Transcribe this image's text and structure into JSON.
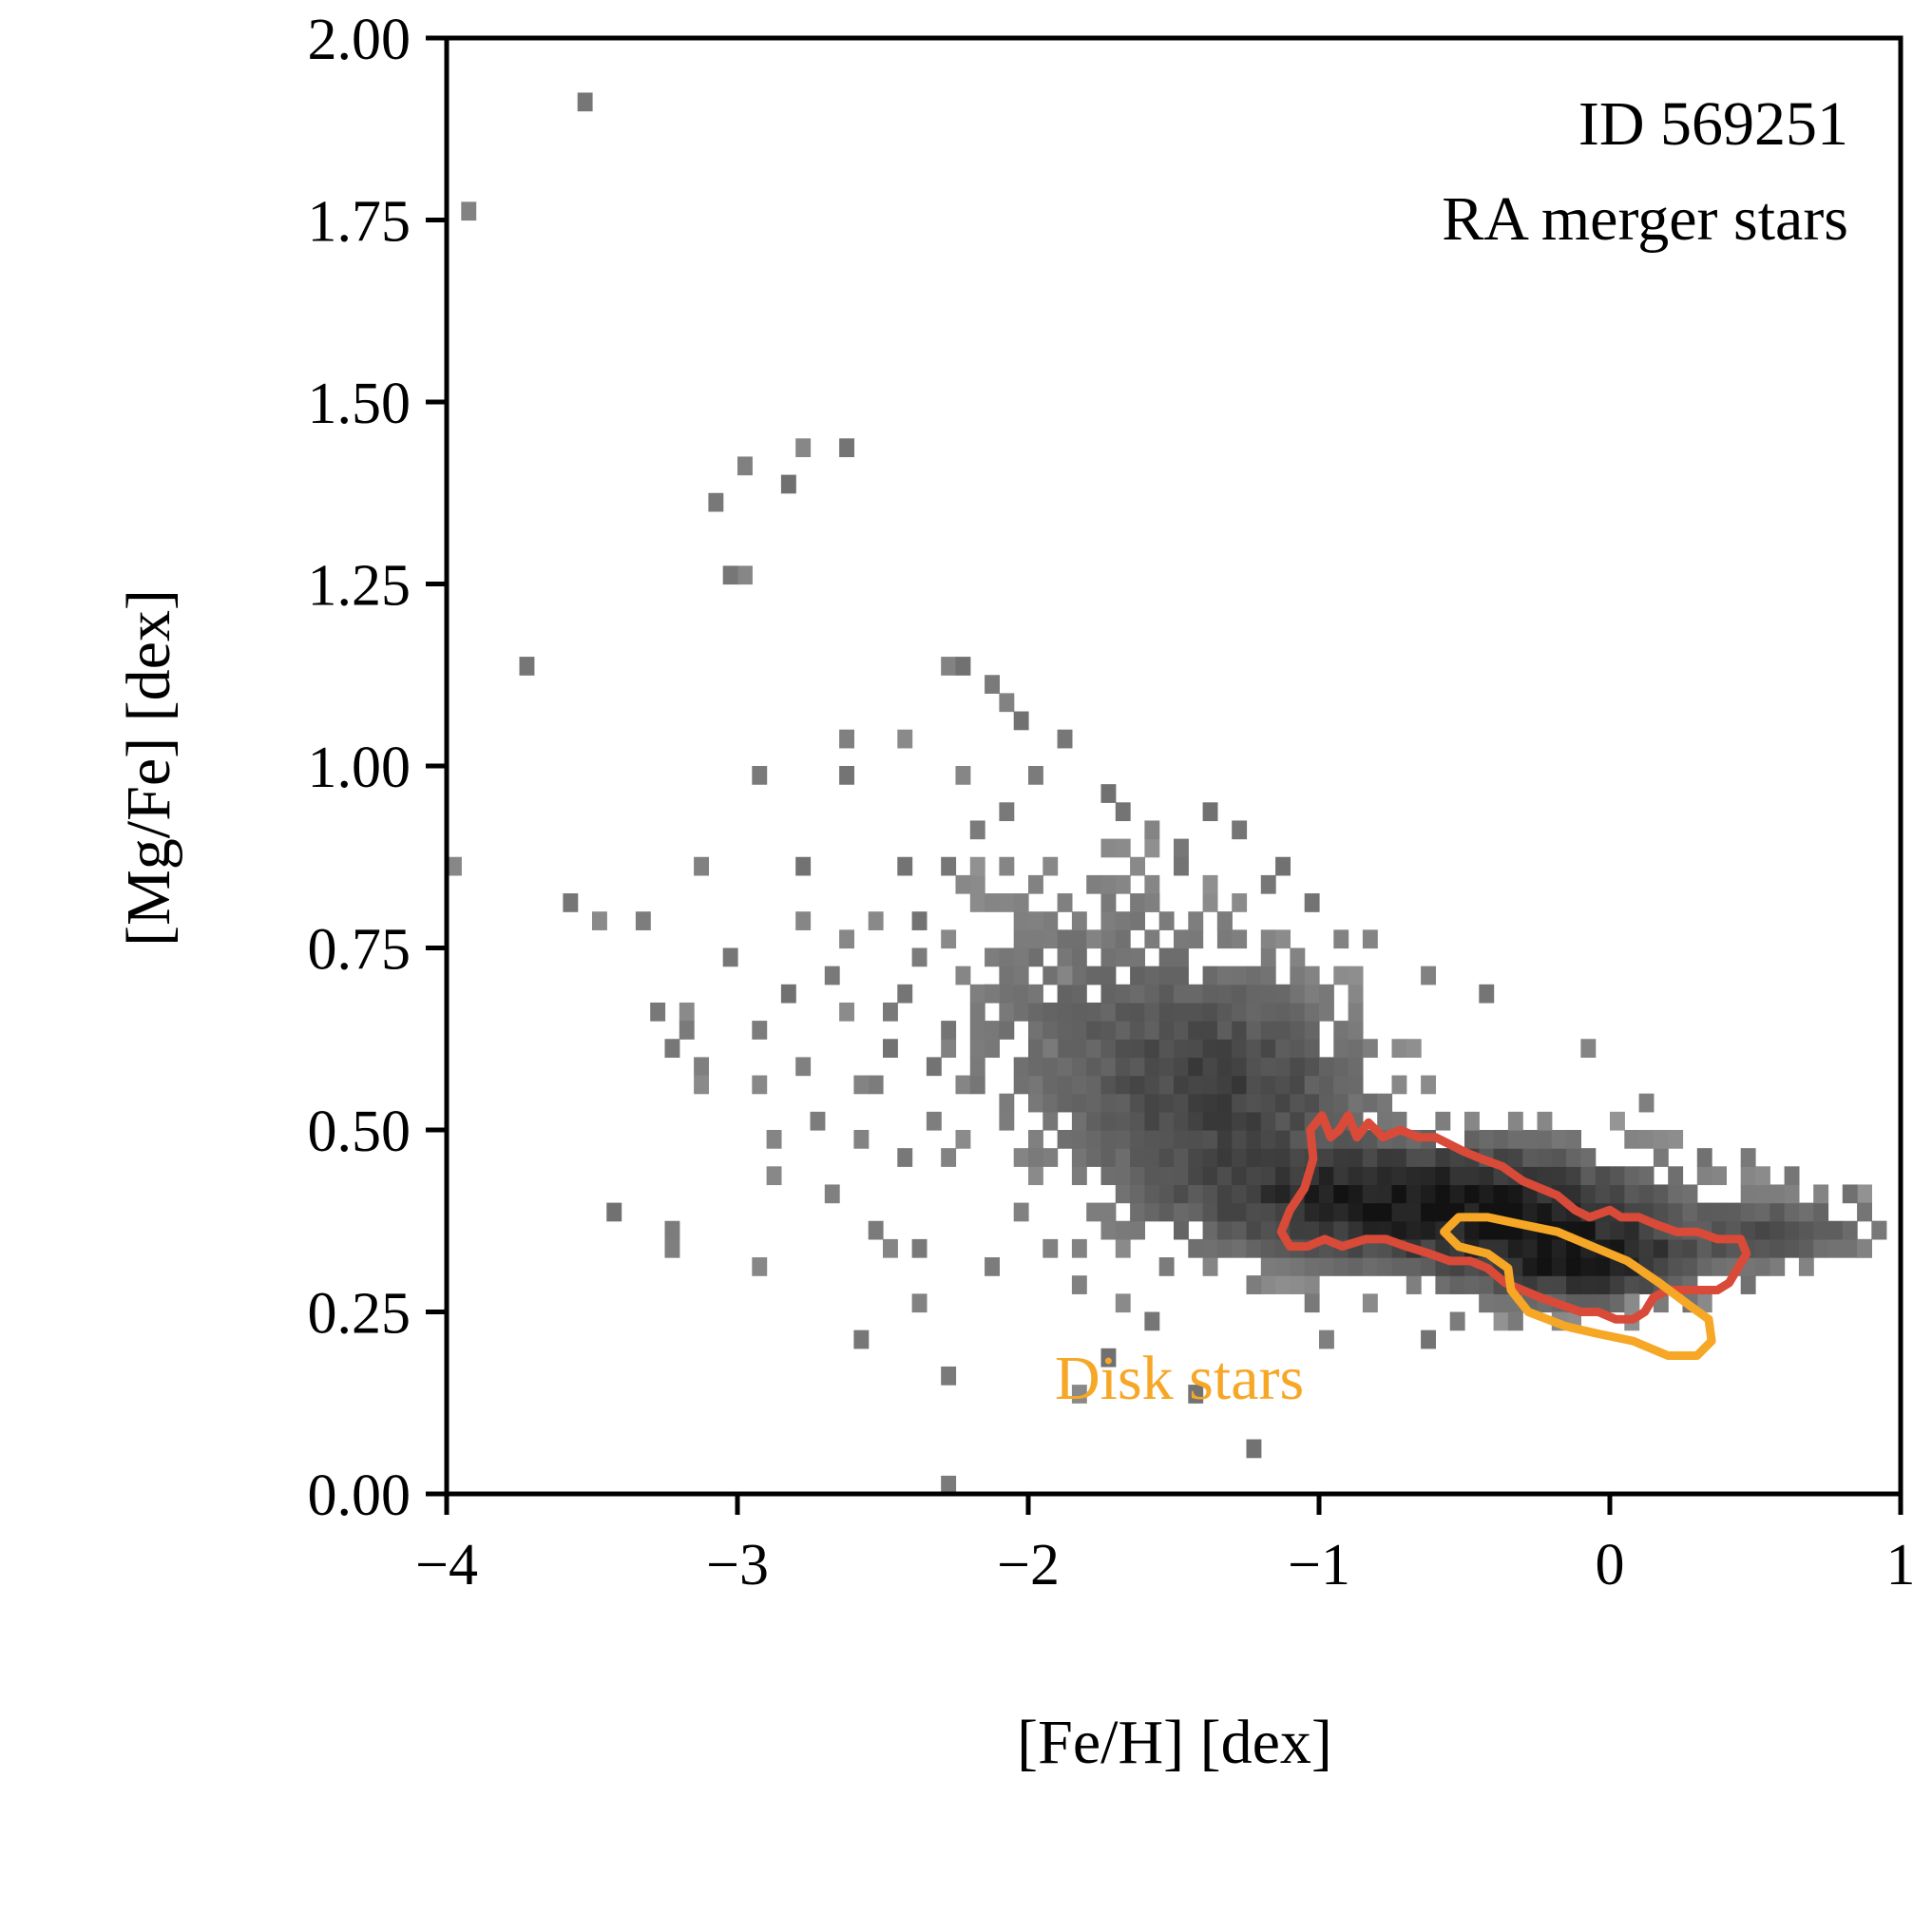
{
  "chart_data": {
    "type": "heatmap",
    "xlabel": "[Fe/H] [dex]",
    "ylabel": "[Mg/Fe] [dex]",
    "xlim": [
      -4,
      1
    ],
    "ylim": [
      0,
      2
    ],
    "x_ticks": [
      {
        "value": -4,
        "label": "−4"
      },
      {
        "value": -3,
        "label": "−3"
      },
      {
        "value": -2,
        "label": "−2"
      },
      {
        "value": -1,
        "label": "−1"
      },
      {
        "value": 0,
        "label": "0"
      },
      {
        "value": 1,
        "label": "1"
      }
    ],
    "y_ticks": [
      {
        "value": 0.0,
        "label": "0.00"
      },
      {
        "value": 0.25,
        "label": "0.25"
      },
      {
        "value": 0.5,
        "label": "0.50"
      },
      {
        "value": 0.75,
        "label": "0.75"
      },
      {
        "value": 1.0,
        "label": "1.00"
      },
      {
        "value": 1.25,
        "label": "1.25"
      },
      {
        "value": 1.5,
        "label": "1.50"
      },
      {
        "value": 1.75,
        "label": "1.75"
      },
      {
        "value": 2.0,
        "label": "2.00"
      }
    ],
    "annotation_id": "ID 569251",
    "annotation_label": "RA merger stars",
    "grid": false,
    "colormap": "greys",
    "bin_size": {
      "feh": 0.05,
      "mgfe": 0.025
    },
    "density_clusters": [
      {
        "feh": -0.6,
        "mgfe": 0.4,
        "sfeh": 0.45,
        "smgfe": 0.05,
        "weight": 1.0
      },
      {
        "feh": -0.1,
        "mgfe": 0.32,
        "sfeh": 0.25,
        "smgfe": 0.035,
        "weight": 0.9
      },
      {
        "feh": -1.3,
        "mgfe": 0.55,
        "sfeh": 0.3,
        "smgfe": 0.1,
        "weight": 0.45
      },
      {
        "feh": 0.6,
        "mgfe": 0.36,
        "sfeh": 0.2,
        "smgfe": 0.03,
        "weight": 0.35
      },
      {
        "feh": -1.8,
        "mgfe": 0.65,
        "sfeh": 0.35,
        "smgfe": 0.15,
        "weight": 0.18
      }
    ],
    "outlier_bins": [
      [
        -3.53,
        1.91
      ],
      [
        -3.93,
        1.77
      ],
      [
        -2.77,
        1.45
      ],
      [
        -2.63,
        1.43
      ],
      [
        -2.97,
        1.41
      ],
      [
        -2.83,
        1.39
      ],
      [
        -3.07,
        1.37
      ],
      [
        -2.99,
        1.27
      ],
      [
        -3.05,
        1.27
      ],
      [
        -3.73,
        1.15
      ],
      [
        -2.27,
        1.15
      ],
      [
        -2.23,
        1.13
      ],
      [
        -2.13,
        1.11
      ],
      [
        -2.07,
        1.09
      ],
      [
        -2.03,
        1.07
      ],
      [
        -2.63,
        1.03
      ],
      [
        -2.43,
        1.03
      ],
      [
        -1.87,
        1.03
      ],
      [
        -2.63,
        0.99
      ],
      [
        -2.93,
        0.99
      ],
      [
        -2.23,
        0.99
      ],
      [
        -3.97,
        0.87
      ],
      [
        -3.13,
        0.87
      ],
      [
        -3.57,
        0.81
      ],
      [
        -3.47,
        0.79
      ],
      [
        -3.33,
        0.79
      ],
      [
        -2.77,
        0.85
      ],
      [
        -2.77,
        0.79
      ],
      [
        -2.37,
        0.79
      ],
      [
        -3.27,
        0.67
      ],
      [
        -3.17,
        0.67
      ],
      [
        -3.03,
        0.73
      ],
      [
        -2.83,
        0.69
      ],
      [
        -3.17,
        0.63
      ],
      [
        -3.23,
        0.61
      ],
      [
        -3.13,
        0.59
      ],
      [
        -3.13,
        0.55
      ],
      [
        -3.43,
        0.39
      ],
      [
        -3.23,
        0.37
      ],
      [
        -3.23,
        0.35
      ],
      [
        -2.93,
        0.31
      ],
      [
        -2.37,
        0.27
      ],
      [
        -2.57,
        0.21
      ],
      [
        -2.27,
        0.17
      ],
      [
        -2.27,
        0.01
      ],
      [
        -1.23,
        0.05
      ],
      [
        -1.43,
        0.13
      ],
      [
        -1.83,
        0.13
      ],
      [
        -1.73,
        0.19
      ],
      [
        -1.57,
        0.23
      ],
      [
        -1.67,
        0.25
      ],
      [
        -0.97,
        0.21
      ],
      [
        -0.83,
        0.25
      ],
      [
        -0.53,
        0.23
      ],
      [
        -0.43,
        0.25
      ],
      [
        -2.37,
        0.35
      ],
      [
        -2.47,
        0.35
      ],
      [
        -2.53,
        0.37
      ],
      [
        -2.67,
        0.41
      ],
      [
        -2.87,
        0.43
      ],
      [
        -2.87,
        0.49
      ],
      [
        -2.73,
        0.51
      ],
      [
        -2.47,
        0.61
      ],
      [
        -2.57,
        0.49
      ],
      [
        -2.43,
        0.45
      ],
      [
        -2.27,
        0.45
      ],
      [
        -2.17,
        0.55
      ],
      [
        -2.33,
        0.59
      ],
      [
        -2.53,
        0.57
      ],
      [
        -2.13,
        0.69
      ],
      [
        -2.03,
        0.73
      ],
      [
        -1.97,
        0.79
      ],
      [
        -2.07,
        0.85
      ],
      [
        -2.23,
        0.83
      ],
      [
        -2.37,
        0.73
      ],
      [
        -2.57,
        0.55
      ],
      [
        -2.77,
        0.59
      ],
      [
        -2.93,
        0.55
      ],
      [
        -2.93,
        0.63
      ],
      [
        -2.63,
        0.65
      ],
      [
        -2.67,
        0.71
      ],
      [
        -2.47,
        0.65
      ],
      [
        -2.33,
        0.51
      ],
      [
        -1.97,
        0.43
      ],
      [
        -2.03,
        0.39
      ],
      [
        -2.13,
        0.31
      ],
      [
        -1.93,
        0.33
      ],
      [
        -1.83,
        0.29
      ],
      [
        -1.27,
        0.91
      ],
      [
        -1.37,
        0.93
      ],
      [
        -1.13,
        0.85
      ],
      [
        -0.83,
        0.75
      ],
      [
        -0.63,
        0.71
      ],
      [
        -0.43,
        0.69
      ],
      [
        -0.07,
        0.61
      ],
      [
        0.13,
        0.53
      ],
      [
        0.33,
        0.47
      ],
      [
        0.47,
        0.45
      ],
      [
        0.63,
        0.43
      ],
      [
        0.83,
        0.41
      ],
      [
        0.89,
        0.39
      ],
      [
        0.93,
        0.37
      ],
      [
        0.87,
        0.33
      ],
      [
        0.45,
        0.29
      ],
      [
        0.25,
        0.27
      ],
      [
        0.07,
        0.25
      ],
      [
        -0.17,
        0.23
      ],
      [
        -0.33,
        0.23
      ],
      [
        -0.63,
        0.21
      ],
      [
        -1.03,
        0.27
      ],
      [
        -1.23,
        0.29
      ],
      [
        -1.53,
        0.31
      ],
      [
        -1.83,
        0.35
      ],
      [
        -1.97,
        0.47
      ],
      [
        -2.03,
        0.57
      ],
      [
        -1.73,
        0.97
      ],
      [
        -1.67,
        0.95
      ],
      [
        -1.57,
        0.91
      ],
      [
        -1.47,
        0.89
      ],
      [
        -1.17,
        0.83
      ],
      [
        -1.03,
        0.81
      ],
      [
        -0.93,
        0.77
      ],
      [
        -1.33,
        0.79
      ],
      [
        -1.97,
        0.99
      ],
      [
        -2.07,
        0.95
      ],
      [
        -2.17,
        0.91
      ],
      [
        -2.27,
        0.87
      ],
      [
        -2.43,
        0.85
      ],
      [
        -2.53,
        0.79
      ],
      [
        -2.63,
        0.75
      ],
      [
        -2.43,
        0.69
      ],
      [
        -2.27,
        0.63
      ],
      [
        -2.17,
        0.59
      ],
      [
        -2.07,
        0.53
      ],
      [
        -1.93,
        0.61
      ],
      [
        -1.87,
        0.71
      ],
      [
        -1.77,
        0.77
      ],
      [
        -1.67,
        0.83
      ],
      [
        -1.57,
        0.81
      ],
      [
        -1.47,
        0.85
      ]
    ],
    "contours": [
      {
        "name": "RA merger stars",
        "color": "#d94a38",
        "points": [
          [
            -1.13,
            0.36
          ],
          [
            -1.1,
            0.39
          ],
          [
            -1.05,
            0.42
          ],
          [
            -1.02,
            0.46
          ],
          [
            -1.03,
            0.5
          ],
          [
            -0.99,
            0.52
          ],
          [
            -0.96,
            0.49
          ],
          [
            -0.93,
            0.5
          ],
          [
            -0.9,
            0.52
          ],
          [
            -0.87,
            0.49
          ],
          [
            -0.83,
            0.51
          ],
          [
            -0.78,
            0.49
          ],
          [
            -0.72,
            0.5
          ],
          [
            -0.66,
            0.49
          ],
          [
            -0.6,
            0.49
          ],
          [
            -0.55,
            0.48
          ],
          [
            -0.5,
            0.47
          ],
          [
            -0.44,
            0.46
          ],
          [
            -0.37,
            0.45
          ],
          [
            -0.3,
            0.43
          ],
          [
            -0.24,
            0.42
          ],
          [
            -0.18,
            0.41
          ],
          [
            -0.12,
            0.39
          ],
          [
            -0.07,
            0.38
          ],
          [
            0.0,
            0.39
          ],
          [
            0.04,
            0.38
          ],
          [
            0.1,
            0.38
          ],
          [
            0.16,
            0.37
          ],
          [
            0.23,
            0.36
          ],
          [
            0.3,
            0.36
          ],
          [
            0.37,
            0.35
          ],
          [
            0.45,
            0.35
          ],
          [
            0.47,
            0.33
          ],
          [
            0.44,
            0.31
          ],
          [
            0.41,
            0.29
          ],
          [
            0.37,
            0.28
          ],
          [
            0.3,
            0.28
          ],
          [
            0.2,
            0.28
          ],
          [
            0.15,
            0.27
          ],
          [
            0.12,
            0.25
          ],
          [
            0.08,
            0.24
          ],
          [
            0.02,
            0.24
          ],
          [
            -0.04,
            0.25
          ],
          [
            -0.1,
            0.25
          ],
          [
            -0.17,
            0.26
          ],
          [
            -0.24,
            0.27
          ],
          [
            -0.3,
            0.28
          ],
          [
            -0.36,
            0.29
          ],
          [
            -0.42,
            0.31
          ],
          [
            -0.48,
            0.32
          ],
          [
            -0.55,
            0.32
          ],
          [
            -0.62,
            0.33
          ],
          [
            -0.7,
            0.34
          ],
          [
            -0.77,
            0.35
          ],
          [
            -0.84,
            0.35
          ],
          [
            -0.92,
            0.34
          ],
          [
            -0.98,
            0.35
          ],
          [
            -1.04,
            0.34
          ],
          [
            -1.1,
            0.34
          ],
          [
            -1.13,
            0.36
          ]
        ]
      },
      {
        "name": "Disk stars",
        "color": "#f6a726",
        "points": [
          [
            -0.57,
            0.36
          ],
          [
            -0.52,
            0.38
          ],
          [
            -0.42,
            0.38
          ],
          [
            -0.3,
            0.37
          ],
          [
            -0.18,
            0.36
          ],
          [
            -0.06,
            0.34
          ],
          [
            0.06,
            0.32
          ],
          [
            0.17,
            0.29
          ],
          [
            0.27,
            0.26
          ],
          [
            0.34,
            0.24
          ],
          [
            0.35,
            0.21
          ],
          [
            0.3,
            0.19
          ],
          [
            0.2,
            0.19
          ],
          [
            0.08,
            0.21
          ],
          [
            -0.04,
            0.22
          ],
          [
            -0.15,
            0.23
          ],
          [
            -0.28,
            0.25
          ],
          [
            -0.34,
            0.28
          ],
          [
            -0.35,
            0.31
          ],
          [
            -0.42,
            0.33
          ],
          [
            -0.52,
            0.34
          ],
          [
            -0.57,
            0.36
          ]
        ]
      }
    ],
    "contour_label": {
      "text": "Disk stars",
      "color": "#f6a726"
    }
  }
}
